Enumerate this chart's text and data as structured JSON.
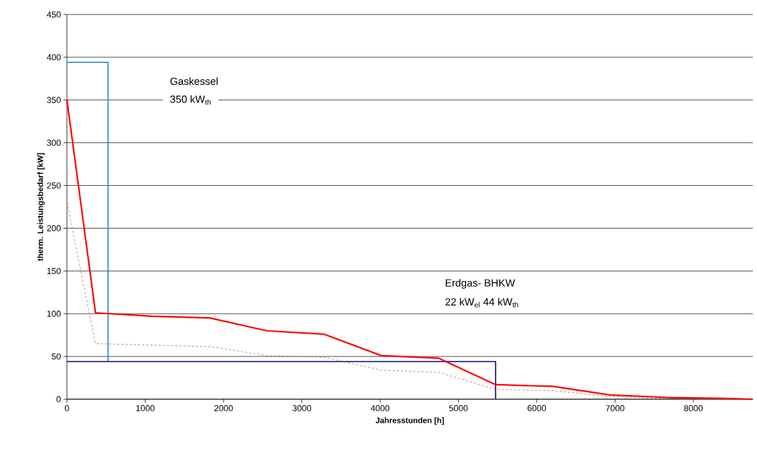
{
  "chart_data": {
    "type": "line",
    "xlabel": "Jahresstunden [h]",
    "ylabel": "therm. Leistungsbedarf [kW]",
    "xlim": [
      0,
      8760
    ],
    "xticks": [
      0,
      1000,
      2000,
      3000,
      4000,
      5000,
      6000,
      7000,
      8000
    ],
    "ylim": [
      0,
      450
    ],
    "yticks": [
      0,
      50,
      100,
      150,
      200,
      250,
      300,
      350,
      400,
      450
    ],
    "grid": "y",
    "annotations": [
      "Gaskessel",
      "350 kW$_{th}$",
      "Erdgas- BHKW",
      "22 kW$_{el}$   44 kW$_{th}$"
    ],
    "series": [
      {
        "color": "#1f7fcc",
        "line_style": "solid",
        "x": [
          0,
          525,
          525
        ],
        "values": [
          394,
          394,
          44
        ]
      },
      {
        "color": "#000080",
        "line_style": "solid",
        "x": [
          0,
          5475,
          5475
        ],
        "values": [
          44,
          44,
          0
        ]
      },
      {
        "color": "#b0524a",
        "line_style": "dashed",
        "x": [
          0,
          365,
          1825,
          2555,
          3285,
          4015,
          4745,
          5475,
          6205,
          6935,
          7665,
          8760
        ],
        "values": [
          230,
          65,
          61.5,
          51,
          49,
          34,
          31.5,
          11.5,
          10,
          3,
          1,
          0
        ]
      },
      {
        "color": "#ff0000",
        "line_style": "solid",
        "x": [
          0,
          365,
          1095,
          1825,
          2555,
          3285,
          4015,
          4745,
          5475,
          6205,
          6935,
          7665,
          8395,
          8760
        ],
        "values": [
          350,
          101,
          97,
          95,
          80,
          76,
          51,
          48,
          17,
          15,
          5,
          2,
          1,
          0
        ]
      }
    ]
  }
}
